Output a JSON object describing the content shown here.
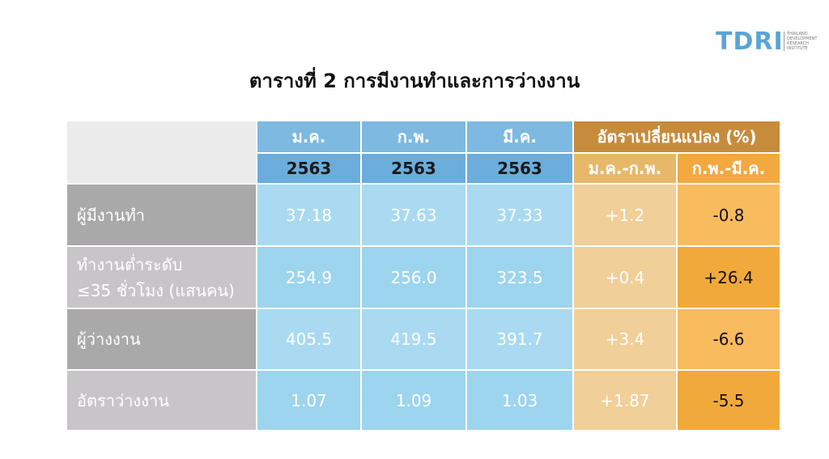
{
  "logo": {
    "mark": "TDRI",
    "lines": [
      "THAILAND",
      "DEVELOPMENT",
      "RESEARCH",
      "INSTITUTE"
    ]
  },
  "title": "ตารางที่ 2 การมีงานทำและการว่างงาน",
  "table": {
    "header": {
      "months": [
        {
          "month": "ม.ค.",
          "year": "2563"
        },
        {
          "month": "ก.พ.",
          "year": "2563"
        },
        {
          "month": "มี.ค.",
          "year": "2563"
        }
      ],
      "change_group": "อัตราเปลี่ยนแปลง (%)",
      "change_cols": [
        "ม.ค.-ก.พ.",
        "ก.พ.-มี.ค."
      ]
    },
    "rows": [
      {
        "label": [
          "ผู้มีงานทำ"
        ],
        "cells": [
          "37.18",
          "37.63",
          "37.33",
          "+1.2",
          "-0.8"
        ]
      },
      {
        "label": [
          "ทำงานต่ำระดับ",
          "≤35 ชั่วโมง (แสนคน)"
        ],
        "cells": [
          "254.9",
          "256.0",
          "323.5",
          "+0.4",
          "+26.4"
        ]
      },
      {
        "label": [
          "ผู้ว่างงาน"
        ],
        "cells": [
          "405.5",
          "419.5",
          "391.7",
          "+3.4",
          "-6.6"
        ]
      },
      {
        "label": [
          "อัตราว่างงาน"
        ],
        "cells": [
          "1.07",
          "1.09",
          "1.03",
          "+1.87",
          "-5.5"
        ]
      }
    ]
  }
}
